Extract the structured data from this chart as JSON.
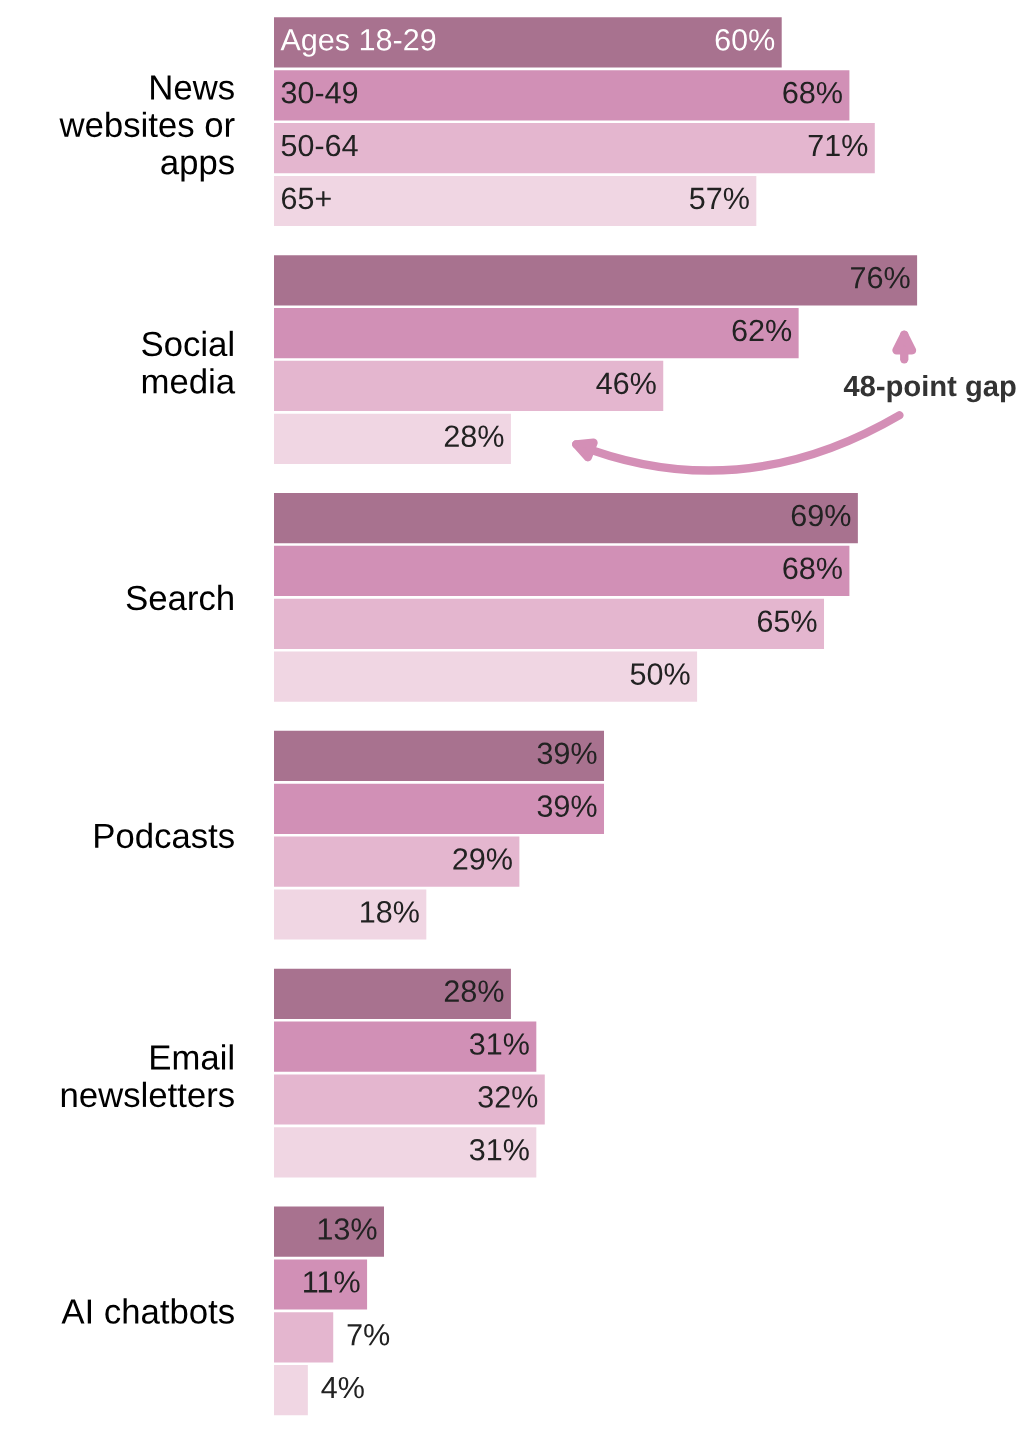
{
  "chart_data": {
    "type": "bar",
    "orientation": "horizontal",
    "legend": false,
    "categories": [
      "News\nwebsites or\napps",
      "Social\nmedia",
      "Search",
      "Podcasts",
      "Email\nnewsletters",
      "AI chatbots"
    ],
    "series": [
      {
        "name": "Ages 18-29",
        "color": "#a8728f",
        "values": [
          60,
          76,
          69,
          39,
          28,
          13
        ],
        "value_labels": [
          "60%",
          "76%",
          "69%",
          "39%",
          "28%",
          "13%"
        ]
      },
      {
        "name": "30-49",
        "color": "#d190b6",
        "values": [
          68,
          62,
          68,
          39,
          31,
          11
        ],
        "value_labels": [
          "68%",
          "62%",
          "68%",
          "39%",
          "31%",
          "11%"
        ]
      },
      {
        "name": "50-64",
        "color": "#e4b6cf",
        "values": [
          71,
          46,
          65,
          29,
          32,
          7
        ],
        "value_labels": [
          "71%",
          "46%",
          "65%",
          "29%",
          "32%",
          "7%"
        ]
      },
      {
        "name": "65+",
        "color": "#f0d6e3",
        "values": [
          57,
          28,
          50,
          18,
          31,
          4
        ],
        "value_labels": [
          "57%",
          "28%",
          "50%",
          "18%",
          "31%",
          "4%"
        ]
      }
    ],
    "annotations": [
      "48-point gap"
    ]
  }
}
